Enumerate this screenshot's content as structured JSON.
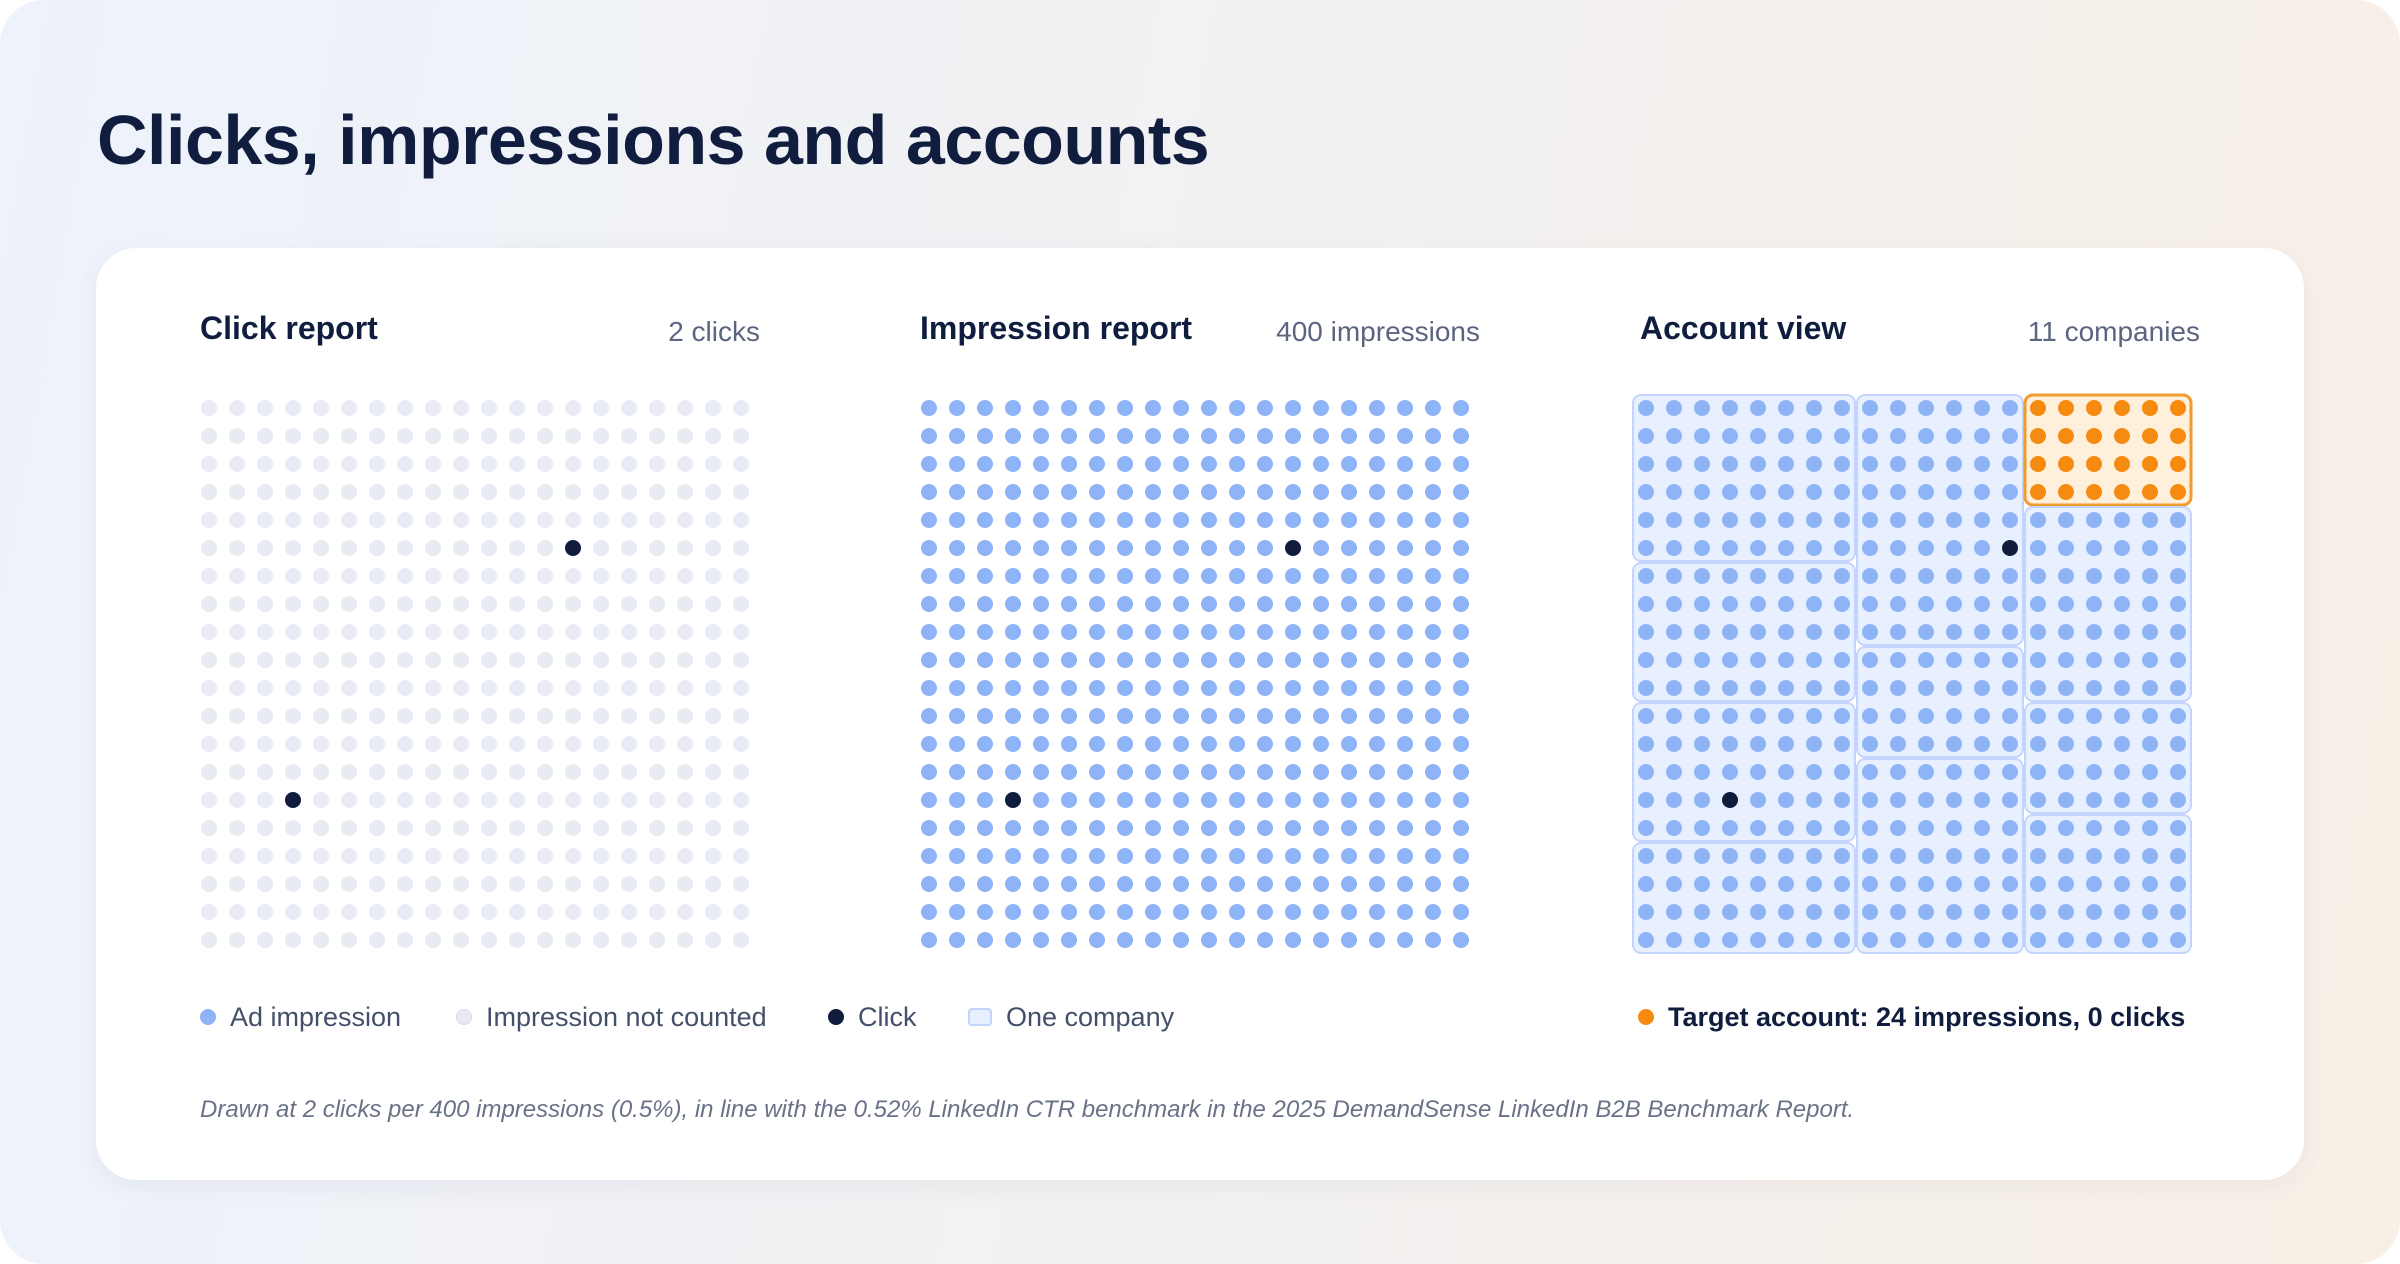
{
  "title": "Clicks, impressions and accounts",
  "colors": {
    "impression": "#8eb3f7",
    "not_counted": "#e8ebf3",
    "click": "#111c3d",
    "company_fill": "#e8f0ff",
    "company_border": "#c2d4fb",
    "target_dot": "#f78b11",
    "target_fill": "#fff0dc",
    "target_border": "#f09a30"
  },
  "panels": [
    {
      "title": "Click report",
      "count": "2 clicks"
    },
    {
      "title": "Impression report",
      "count": "400 impressions"
    },
    {
      "title": "Account view",
      "count": "11 companies"
    }
  ],
  "legend": {
    "ad_impression": "Ad impression",
    "not_counted": "Impression not counted",
    "click": "Click",
    "one_company": "One company",
    "target": "Target account: 24 impressions, 0 clicks"
  },
  "footnote": "Drawn at 2 clicks per 400 impressions (0.5%), in line with the 0.52% LinkedIn CTR benchmark in the 2025 DemandSense LinkedIn B2B Benchmark Report.",
  "chart_data": [
    {
      "type": "dot-grid",
      "name": "Click report",
      "grid": {
        "rows": 20,
        "cols": 20
      },
      "total_cells": 400,
      "clicks": [
        {
          "row": 5,
          "col": 13
        },
        {
          "row": 14,
          "col": 3
        }
      ]
    },
    {
      "type": "dot-grid",
      "name": "Impression report",
      "grid": {
        "rows": 20,
        "cols": 20
      },
      "impressions": 400,
      "clicks": [
        {
          "row": 5,
          "col": 13
        },
        {
          "row": 14,
          "col": 3
        }
      ]
    },
    {
      "type": "dot-grid",
      "name": "Account view",
      "grid": {
        "rows": 20,
        "cols": 20
      },
      "companies": 11,
      "clicks": [
        {
          "row": 5,
          "col": 13
        },
        {
          "row": 14,
          "col": 3
        }
      ],
      "accounts": [
        {
          "row": 0,
          "col": 0,
          "rows": 6,
          "cols": 8,
          "target": false
        },
        {
          "row": 6,
          "col": 0,
          "rows": 5,
          "cols": 8,
          "target": false
        },
        {
          "row": 11,
          "col": 0,
          "rows": 5,
          "cols": 8,
          "target": false
        },
        {
          "row": 16,
          "col": 0,
          "rows": 4,
          "cols": 8,
          "target": false
        },
        {
          "row": 0,
          "col": 8,
          "rows": 9,
          "cols": 6,
          "target": false
        },
        {
          "row": 9,
          "col": 8,
          "rows": 4,
          "cols": 6,
          "target": false
        },
        {
          "row": 13,
          "col": 8,
          "rows": 7,
          "cols": 6,
          "target": false
        },
        {
          "row": 0,
          "col": 14,
          "rows": 4,
          "cols": 6,
          "target": true
        },
        {
          "row": 4,
          "col": 14,
          "rows": 7,
          "cols": 6,
          "target": false
        },
        {
          "row": 11,
          "col": 14,
          "rows": 4,
          "cols": 6,
          "target": false
        },
        {
          "row": 15,
          "col": 14,
          "rows": 5,
          "cols": 6,
          "target": false
        }
      ]
    }
  ]
}
